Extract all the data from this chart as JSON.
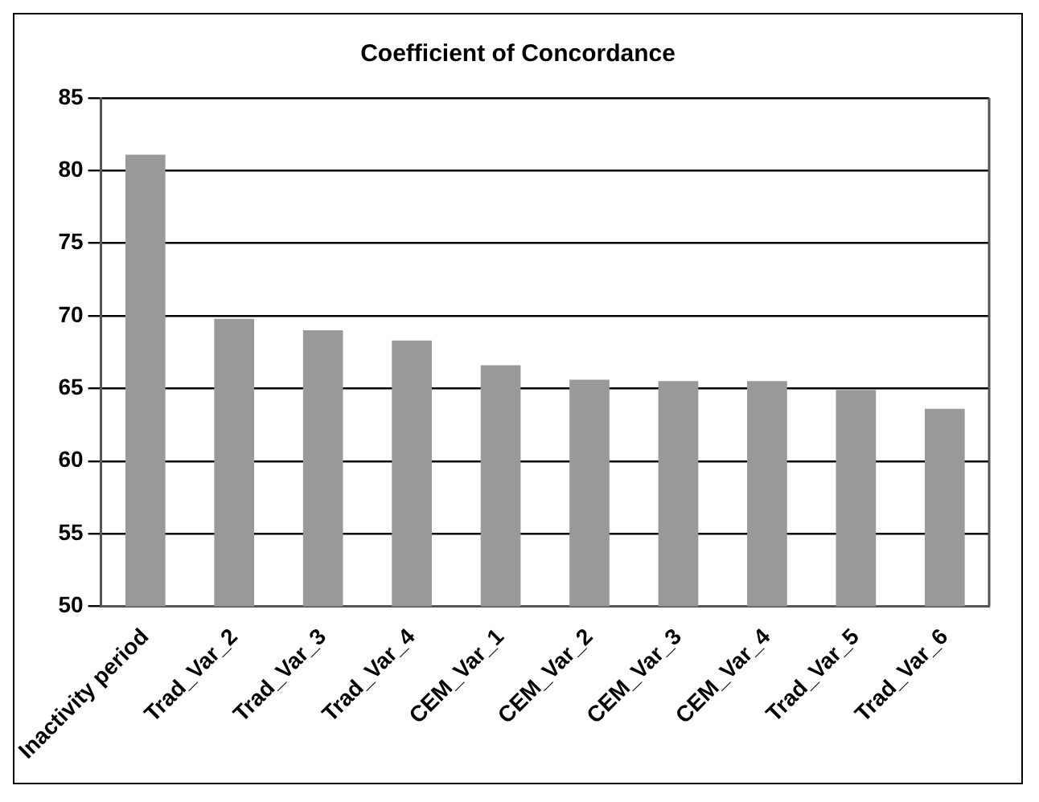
{
  "chart_data": {
    "type": "bar",
    "title": "Coefficient of Concordance",
    "categories": [
      "Inactivity period",
      "Trad_Var_2",
      "Trad_Var_3",
      "Trad_Var_4",
      "CEM_Var_1",
      "CEM_Var_2",
      "CEM_Var_3",
      "CEM_Var_4",
      "Trad_Var_5",
      "Trad_Var_6"
    ],
    "values": [
      81.1,
      69.8,
      69.0,
      68.3,
      66.6,
      65.6,
      65.5,
      65.5,
      64.9,
      63.6
    ],
    "color": "#999999",
    "ylim": [
      50,
      85
    ],
    "yticks": [
      50,
      55,
      60,
      65,
      70,
      75,
      80,
      85
    ],
    "grid": "y",
    "legend": false
  }
}
